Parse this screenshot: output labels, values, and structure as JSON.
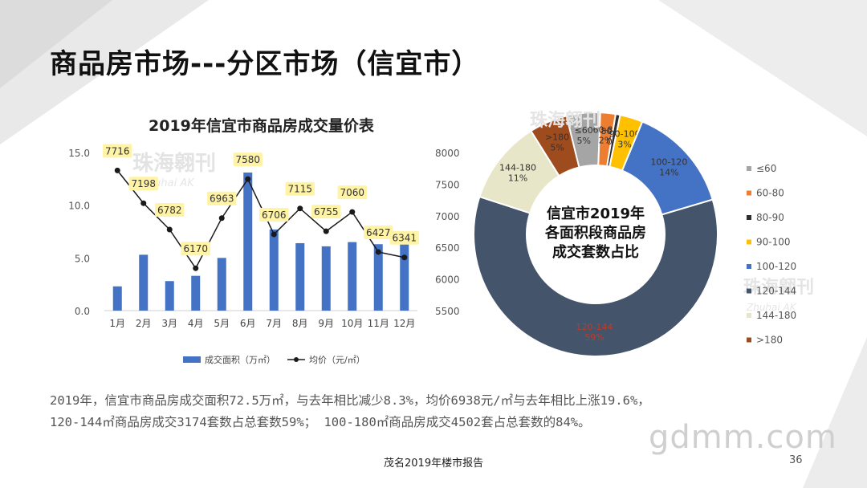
{
  "page": {
    "title": "商品房市场---分区市场（信宜市）",
    "summary_line1": "2019年，信宜市商品房成交面积72.5万㎡，与去年相比减少8.3%，均价6938元/㎡与去年相比上涨19.6%，",
    "summary_line2": "120-144㎡商品房成交3174套数占总套数59%； 100-180㎡商品房成交4502套占总套数的84%。",
    "footer": "茂名2019年楼市报告",
    "page_number": "36",
    "watermark_brand": "珠海翱刊",
    "watermark_en": "Zhuhai AK",
    "site_watermark": "gdmm.com"
  },
  "chart_data": [
    {
      "type": "bar",
      "title": "2019年信宜市商品房成交量价表",
      "categories": [
        "1月",
        "2月",
        "3月",
        "4月",
        "5月",
        "6月",
        "7月",
        "8月",
        "9月",
        "10月",
        "11月",
        "12月"
      ],
      "y_ticks": [
        "15.0",
        "10.0",
        "5.0",
        "0.0"
      ],
      "y2_ticks": [
        "8000",
        "7500",
        "7000",
        "6500",
        "6000",
        "5500"
      ],
      "ylim": [
        0,
        15
      ],
      "y2lim": [
        5500,
        8000
      ],
      "series": [
        {
          "name": "成交面积（万㎡）",
          "type": "bar",
          "axis": "left",
          "color": "#4472c4",
          "values": [
            2.3,
            5.3,
            2.8,
            3.3,
            5.0,
            13.1,
            7.7,
            6.4,
            6.1,
            6.5,
            6.3,
            7.5
          ]
        },
        {
          "name": "均价（元/㎡）",
          "type": "line",
          "axis": "right",
          "color": "#1a1a1a",
          "values": [
            7716,
            7198,
            6782,
            6170,
            6963,
            7580,
            6706,
            7115,
            6755,
            7060,
            6427,
            6341
          ],
          "labels": [
            "7716",
            "7198",
            "6782",
            "6170",
            "6963",
            "7580",
            "6706",
            "7115",
            "6755",
            "7060",
            "6427",
            "6341"
          ]
        }
      ],
      "legend_position": "bottom"
    },
    {
      "type": "pie",
      "donut": true,
      "center_text": [
        "信宜市2019年",
        "各面积段商品房",
        "成交套数占比"
      ],
      "legend_position": "right",
      "slices": [
        {
          "name": "≤60",
          "value": 5,
          "label": "≤60\n5%",
          "color": "#a5a5a5"
        },
        {
          "name": "60-80",
          "value": 2,
          "label": "60-80\n2%",
          "color": "#ed7d31"
        },
        {
          "name": "80-90",
          "value": 0,
          "label": "80-90\n0%",
          "color": "#2e2e2e"
        },
        {
          "name": "90-100",
          "value": 3,
          "label": "90-100\n3%",
          "color": "#ffc000"
        },
        {
          "name": "100-120",
          "value": 14,
          "label": "100-120\n14%",
          "color": "#4472c4"
        },
        {
          "name": "120-144",
          "value": 59,
          "label": "120-144\n59%",
          "color": "#44546a"
        },
        {
          "name": "144-180",
          "value": 11,
          "label": "144-180\n11%",
          "color": "#e7e6c8"
        },
        {
          "name": ">180",
          "value": 5,
          "label": ">180\n5%",
          "color": "#9e4b1e"
        }
      ]
    }
  ]
}
